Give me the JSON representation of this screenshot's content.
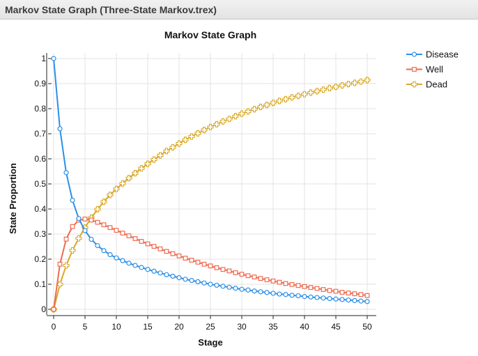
{
  "window": {
    "title": "Markov State Graph (Three-State Markov.trex)"
  },
  "chart_data": {
    "type": "line",
    "title": "Markov State Graph",
    "xlabel": "Stage",
    "ylabel": "State Proportion",
    "xlim": [
      0,
      50
    ],
    "ylim": [
      0,
      1
    ],
    "x_ticks": [
      "0",
      "5",
      "10",
      "15",
      "20",
      "25",
      "30",
      "35",
      "40",
      "45",
      "50"
    ],
    "y_ticks": [
      "0",
      "0.1",
      "0.2",
      "0.3",
      "0.4",
      "0.5",
      "0.6",
      "0.7",
      "0.8",
      "0.9",
      "1"
    ],
    "grid": true,
    "legend_position": "top-right",
    "x": [
      0,
      1,
      2,
      3,
      4,
      5,
      6,
      7,
      8,
      9,
      10,
      11,
      12,
      13,
      14,
      15,
      16,
      17,
      18,
      19,
      20,
      21,
      22,
      23,
      24,
      25,
      26,
      27,
      28,
      29,
      30,
      31,
      32,
      33,
      34,
      35,
      36,
      37,
      38,
      39,
      40,
      41,
      42,
      43,
      44,
      45,
      46,
      47,
      48,
      49,
      50
    ],
    "series": [
      {
        "name": "Disease",
        "color": "#2b8fe8",
        "marker": "circle",
        "values": [
          1.0,
          0.72,
          0.545,
          0.435,
          0.362,
          0.314,
          0.279,
          0.254,
          0.234,
          0.218,
          0.205,
          0.194,
          0.184,
          0.175,
          0.167,
          0.159,
          0.152,
          0.145,
          0.138,
          0.132,
          0.126,
          0.12,
          0.115,
          0.11,
          0.105,
          0.1,
          0.096,
          0.092,
          0.088,
          0.084,
          0.08,
          0.077,
          0.073,
          0.07,
          0.067,
          0.064,
          0.061,
          0.059,
          0.056,
          0.054,
          0.051,
          0.049,
          0.047,
          0.045,
          0.043,
          0.041,
          0.039,
          0.037,
          0.035,
          0.033,
          0.031
        ]
      },
      {
        "name": "Well",
        "color": "#ee6a4f",
        "marker": "square",
        "values": [
          0.0,
          0.18,
          0.28,
          0.33,
          0.355,
          0.36,
          0.356,
          0.347,
          0.337,
          0.326,
          0.315,
          0.304,
          0.293,
          0.282,
          0.271,
          0.261,
          0.251,
          0.241,
          0.231,
          0.222,
          0.213,
          0.204,
          0.196,
          0.188,
          0.18,
          0.173,
          0.166,
          0.159,
          0.153,
          0.146,
          0.14,
          0.134,
          0.129,
          0.123,
          0.118,
          0.113,
          0.108,
          0.103,
          0.099,
          0.095,
          0.091,
          0.087,
          0.083,
          0.079,
          0.075,
          0.072,
          0.068,
          0.065,
          0.062,
          0.059,
          0.055
        ]
      },
      {
        "name": "Dead",
        "color": "#d9a826",
        "marker": "cross",
        "values": [
          0.0,
          0.1,
          0.175,
          0.235,
          0.283,
          0.326,
          0.365,
          0.399,
          0.429,
          0.456,
          0.48,
          0.502,
          0.523,
          0.543,
          0.562,
          0.58,
          0.597,
          0.614,
          0.631,
          0.646,
          0.661,
          0.676,
          0.689,
          0.702,
          0.715,
          0.727,
          0.738,
          0.749,
          0.759,
          0.77,
          0.78,
          0.789,
          0.798,
          0.807,
          0.815,
          0.823,
          0.831,
          0.838,
          0.845,
          0.851,
          0.858,
          0.864,
          0.87,
          0.876,
          0.882,
          0.887,
          0.893,
          0.898,
          0.903,
          0.908,
          0.914
        ]
      }
    ]
  }
}
